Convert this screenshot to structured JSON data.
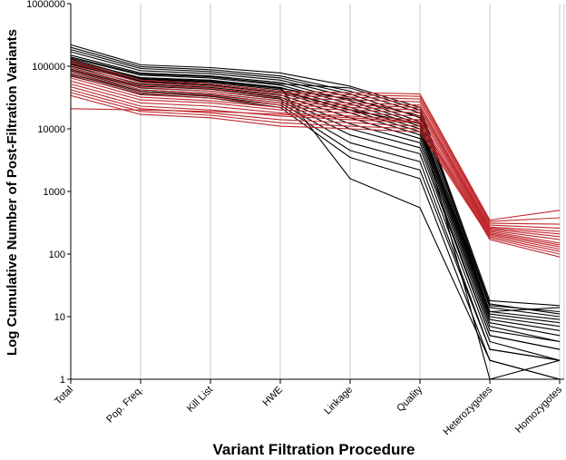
{
  "chart_data": {
    "type": "line",
    "title": "",
    "xlabel": "Variant Filtration Procedure",
    "ylabel": "Log Cumulative Number of Post-Filtration Variants",
    "y_scale": "log",
    "ylim": [
      1,
      1000000
    ],
    "y_ticks": [
      "1",
      "10",
      "100",
      "1000",
      "10000",
      "100000",
      "1000000"
    ],
    "categories": [
      "Total",
      "Pop. Freq.",
      "Kill List",
      "HWE",
      "Linkage",
      "Quality",
      "Heterozygotes",
      "Homozygotes"
    ],
    "grid": "vertical",
    "legend": "none",
    "series_groups": [
      {
        "color": "#000000",
        "series": [
          {
            "values": [
              220000,
              105000,
              95000,
              78000,
              48000,
              22000,
              18,
              15
            ]
          },
          {
            "values": [
              200000,
              98000,
              88000,
              70000,
              40000,
              18000,
              15,
              12
            ]
          },
          {
            "values": [
              185000,
              92000,
              82000,
              65000,
              36000,
              15000,
              14,
              10
            ]
          },
          {
            "values": [
              170000,
              85000,
              76000,
              60000,
              32000,
              13000,
              12,
              9
            ]
          },
          {
            "values": [
              150000,
              78000,
              70000,
              55000,
              28000,
              12000,
              11,
              8
            ]
          },
          {
            "values": [
              135000,
              72000,
              65000,
              50000,
              25000,
              11000,
              10,
              7
            ]
          },
          {
            "values": [
              125000,
              66000,
              60000,
              46000,
              22000,
              10000,
              9,
              6
            ]
          },
          {
            "values": [
              115000,
              60000,
              55000,
              42000,
              20000,
              9000,
              8,
              5
            ]
          },
          {
            "values": [
              108000,
              56000,
              50000,
              38000,
              18000,
              8000,
              7,
              4
            ]
          },
          {
            "values": [
              100000,
              52000,
              46000,
              35000,
              15000,
              7000,
              6,
              4
            ]
          },
          {
            "values": [
              95000,
              48000,
              43000,
              32000,
              12000,
              6000,
              5,
              3
            ]
          },
          {
            "values": [
              90000,
              45000,
              40000,
              30000,
              10000,
              5000,
              5,
              3
            ]
          },
          {
            "values": [
              85000,
              42000,
              37000,
              28000,
              8000,
              4000,
              4,
              2
            ]
          },
          {
            "values": [
              80000,
              40000,
              35000,
              26000,
              6000,
              3000,
              3,
              2
            ]
          },
          {
            "values": [
              75000,
              38000,
              33000,
              24000,
              4500,
              2200,
              3,
              2
            ]
          },
          {
            "values": [
              70000,
              36000,
              31000,
              22000,
              3500,
              1600,
              2,
              1
            ]
          },
          {
            "values": [
              130000,
              64000,
              58000,
              45000,
              1600,
              550,
              2,
              1
            ]
          },
          {
            "values": [
              110000,
              58000,
              52000,
              40000,
              20000,
              12000,
              1,
              2
            ]
          },
          {
            "values": [
              120000,
              62000,
              57000,
              44000,
              30000,
              16000,
              12,
              14
            ]
          },
          {
            "values": [
              140000,
              75000,
              68000,
              52000,
              45000,
              20000,
              16,
              11
            ]
          }
        ]
      },
      {
        "color": "#c0282d",
        "series": [
          {
            "values": [
              125000,
              60000,
              52000,
              40000,
              38000,
              36000,
              350,
              500
            ]
          },
          {
            "values": [
              115000,
              55000,
              48000,
              37000,
              35000,
              33000,
              330,
              380
            ]
          },
          {
            "values": [
              105000,
              50000,
              44000,
              34000,
              32000,
              30000,
              310,
              300
            ]
          },
          {
            "values": [
              95000,
              46000,
              40000,
              31000,
              29000,
              27000,
              290,
              260
            ]
          },
          {
            "values": [
              88000,
              42000,
              37000,
              28000,
              26000,
              24000,
              270,
              230
            ]
          },
          {
            "values": [
              80000,
              38000,
              34000,
              26000,
              24000,
              22000,
              260,
              210
            ]
          },
          {
            "values": [
              72000,
              35000,
              31000,
              24000,
              22000,
              20000,
              250,
              190
            ]
          },
          {
            "values": [
              65000,
              32000,
              28000,
              22000,
              20000,
              18000,
              240,
              170
            ]
          },
          {
            "values": [
              58000,
              29000,
              26000,
              20000,
              18000,
              16000,
              230,
              150
            ]
          },
          {
            "values": [
              52000,
              26000,
              23000,
              18000,
              16000,
              14000,
              220,
              140
            ]
          },
          {
            "values": [
              47000,
              23000,
              20000,
              16000,
              14000,
              12500,
              210,
              130
            ]
          },
          {
            "values": [
              42000,
              21000,
              18000,
              14000,
              12500,
              11000,
              200,
              120
            ]
          },
          {
            "values": [
              38000,
              19000,
              16500,
              12500,
              11000,
              10000,
              190,
              110
            ]
          },
          {
            "values": [
              34000,
              17000,
              15000,
              11000,
              10000,
              9000,
              180,
              100
            ]
          },
          {
            "values": [
              21000,
              20000,
              19000,
              17000,
              15000,
              13000,
              170,
              90
            ]
          }
        ]
      }
    ]
  }
}
